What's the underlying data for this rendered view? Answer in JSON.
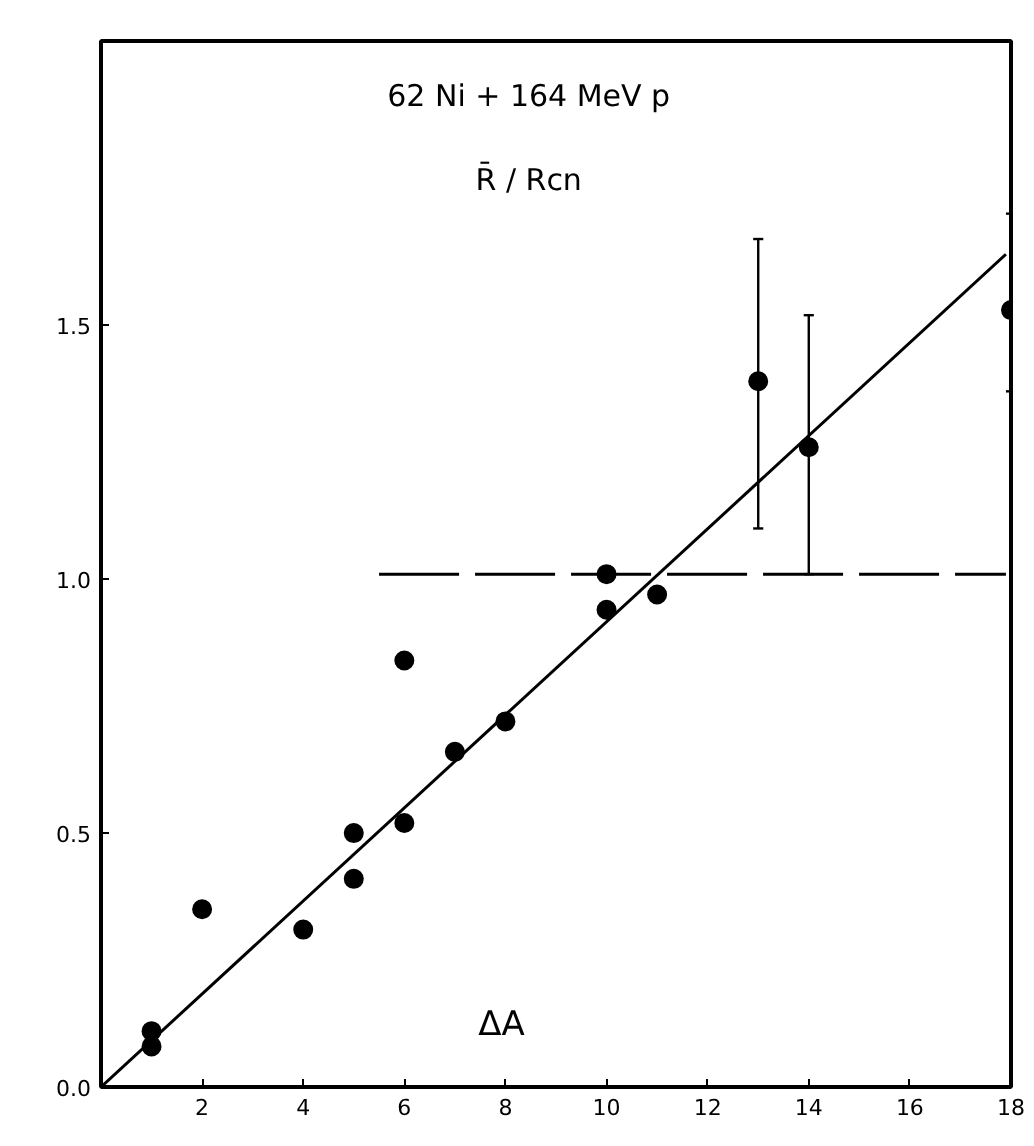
{
  "chart_data": {
    "type": "scatter",
    "title": "62 Ni + 164 MeV p",
    "subtitle": "R̄ / Rcn",
    "xlabel": "ΔA",
    "xlim": [
      0,
      18
    ],
    "ylim": [
      0,
      2.06
    ],
    "xticks": [
      2,
      4,
      6,
      8,
      10,
      12,
      14,
      16,
      18
    ],
    "yticks": [
      {
        "value": 0,
        "label": "0.0"
      },
      {
        "value": 0.5,
        "label": "0.5"
      },
      {
        "value": 1.0,
        "label": "1.0"
      },
      {
        "value": 1.5,
        "label": "1.5"
      }
    ],
    "grid": false,
    "marker": "circle",
    "series": [
      {
        "color": "#000000",
        "x": [
          1,
          1,
          2,
          4,
          5,
          5,
          6,
          6,
          7,
          8,
          10,
          10,
          11,
          13,
          14,
          18
        ],
        "values": [
          0.11,
          0.08,
          0.35,
          0.31,
          0.5,
          0.41,
          0.84,
          0.52,
          0.66,
          0.72,
          1.01,
          0.94,
          0.97,
          1.39,
          1.26,
          1.53
        ],
        "errors": [
          null,
          null,
          null,
          null,
          null,
          null,
          null,
          null,
          null,
          null,
          null,
          null,
          null,
          [
            1.1,
            1.67
          ],
          [
            1.01,
            1.52
          ],
          [
            1.37,
            1.72
          ]
        ]
      },
      {
        "type": "line",
        "color": "#000000",
        "marker": "none",
        "x": [
          0,
          17.9
        ],
        "values": [
          0,
          1.64
        ]
      },
      {
        "type": "line",
        "color": "#000000",
        "marker": "none",
        "line_style": "dashed",
        "x": [
          5.5,
          17.9
        ],
        "values": [
          1.01,
          1.01
        ]
      }
    ]
  }
}
